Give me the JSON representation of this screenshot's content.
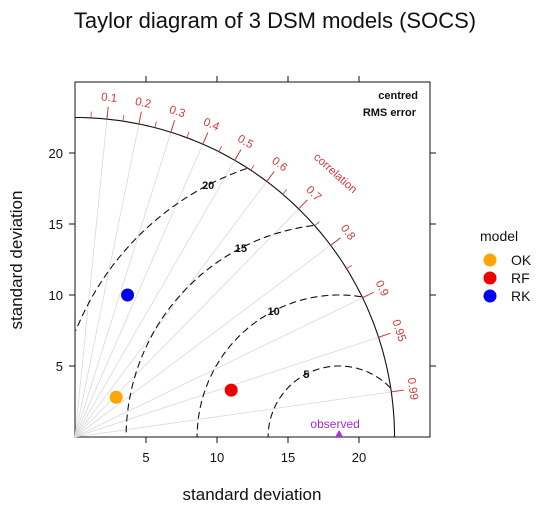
{
  "chart_data": {
    "type": "scatter",
    "subtype": "taylor-diagram",
    "title": "Taylor diagram of 3 DSM models (SOCS)",
    "xlabel": "standard deviation",
    "ylabel": "standard deviation",
    "xlim": [
      0,
      25
    ],
    "ylim": [
      0,
      25
    ],
    "xticks": [
      5,
      10,
      15,
      20
    ],
    "yticks": [
      5,
      10,
      15,
      20
    ],
    "max_sd": 22.5,
    "correlation_label": "correlation",
    "correlation_ticks": [
      0.1,
      0.2,
      0.3,
      0.4,
      0.5,
      0.6,
      0.7,
      0.8,
      0.9,
      0.95,
      0.99
    ],
    "rms_label_line1": "centred",
    "rms_label_line2": "RMS error",
    "rms_contours": [
      5,
      10,
      15,
      20
    ],
    "observed": {
      "label": "observed",
      "sd": 18.6,
      "color": "#b030e0"
    },
    "legend_title": "model",
    "series": [
      {
        "name": "OK",
        "color": "#ffa500",
        "x": 2.9,
        "y": 2.8
      },
      {
        "name": "RF",
        "color": "#ee0000",
        "x": 11.0,
        "y": 3.3
      },
      {
        "name": "RK",
        "color": "#0000ee",
        "x": 3.7,
        "y": 10.0
      }
    ],
    "colors": {
      "correlation": "#d23a3a",
      "frame": "#111111"
    }
  }
}
